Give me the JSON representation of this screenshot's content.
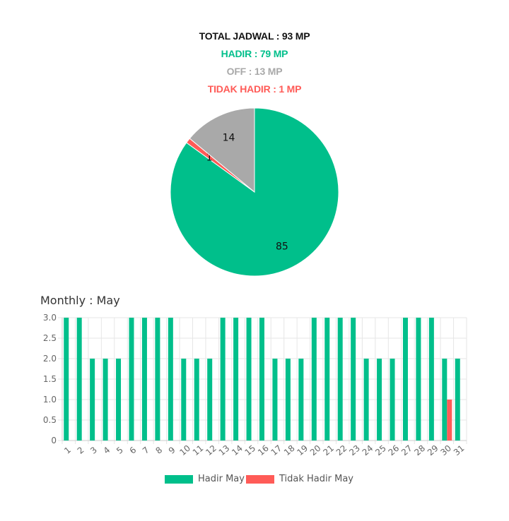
{
  "summary": {
    "total": "TOTAL JADWAL : 93 MP",
    "hadir": "HADIR : 79 MP",
    "off": "OFF : 13 MP",
    "tidak_hadir": "TIDAK HADIR : 1 MP"
  },
  "colors": {
    "hadir": "#00bf8b",
    "off": "#a9a9a9",
    "tidak_hadir": "#ff5b57",
    "total": "#111111"
  },
  "monthly_title": "Monthly : May",
  "chart_data": [
    {
      "type": "pie",
      "slices": [
        {
          "label": "85",
          "value": 85,
          "color": "#00bf8b"
        },
        {
          "label": "1",
          "value": 1,
          "color": "#ff5b57"
        },
        {
          "label": "14",
          "value": 14,
          "color": "#a9a9a9"
        }
      ],
      "data_labels": [
        "85",
        "1",
        "14"
      ]
    },
    {
      "type": "bar",
      "categories": [
        "1",
        "2",
        "3",
        "4",
        "5",
        "6",
        "7",
        "8",
        "9",
        "10",
        "11",
        "12",
        "13",
        "14",
        "15",
        "16",
        "17",
        "18",
        "19",
        "20",
        "21",
        "22",
        "23",
        "24",
        "25",
        "26",
        "27",
        "28",
        "29",
        "30",
        "31"
      ],
      "series": [
        {
          "name": "Hadir May",
          "color": "#00bf8b",
          "values": [
            3,
            3,
            2,
            2,
            2,
            3,
            3,
            3,
            3,
            2,
            2,
            2,
            3,
            3,
            3,
            3,
            2,
            2,
            2,
            3,
            3,
            3,
            3,
            2,
            2,
            2,
            3,
            3,
            3,
            2,
            2
          ]
        },
        {
          "name": "Tidak Hadir May",
          "color": "#ff5b57",
          "values": [
            0,
            0,
            0,
            0,
            0,
            0,
            0,
            0,
            0,
            0,
            0,
            0,
            0,
            0,
            0,
            0,
            0,
            0,
            0,
            0,
            0,
            0,
            0,
            0,
            0,
            0,
            0,
            0,
            0,
            1,
            0
          ]
        }
      ],
      "ylim": [
        0,
        3
      ],
      "yticks": [
        "0",
        "0.5",
        "1.0",
        "1.5",
        "2.0",
        "2.5",
        "3.0"
      ],
      "grid": true,
      "legend": "bottom"
    }
  ]
}
